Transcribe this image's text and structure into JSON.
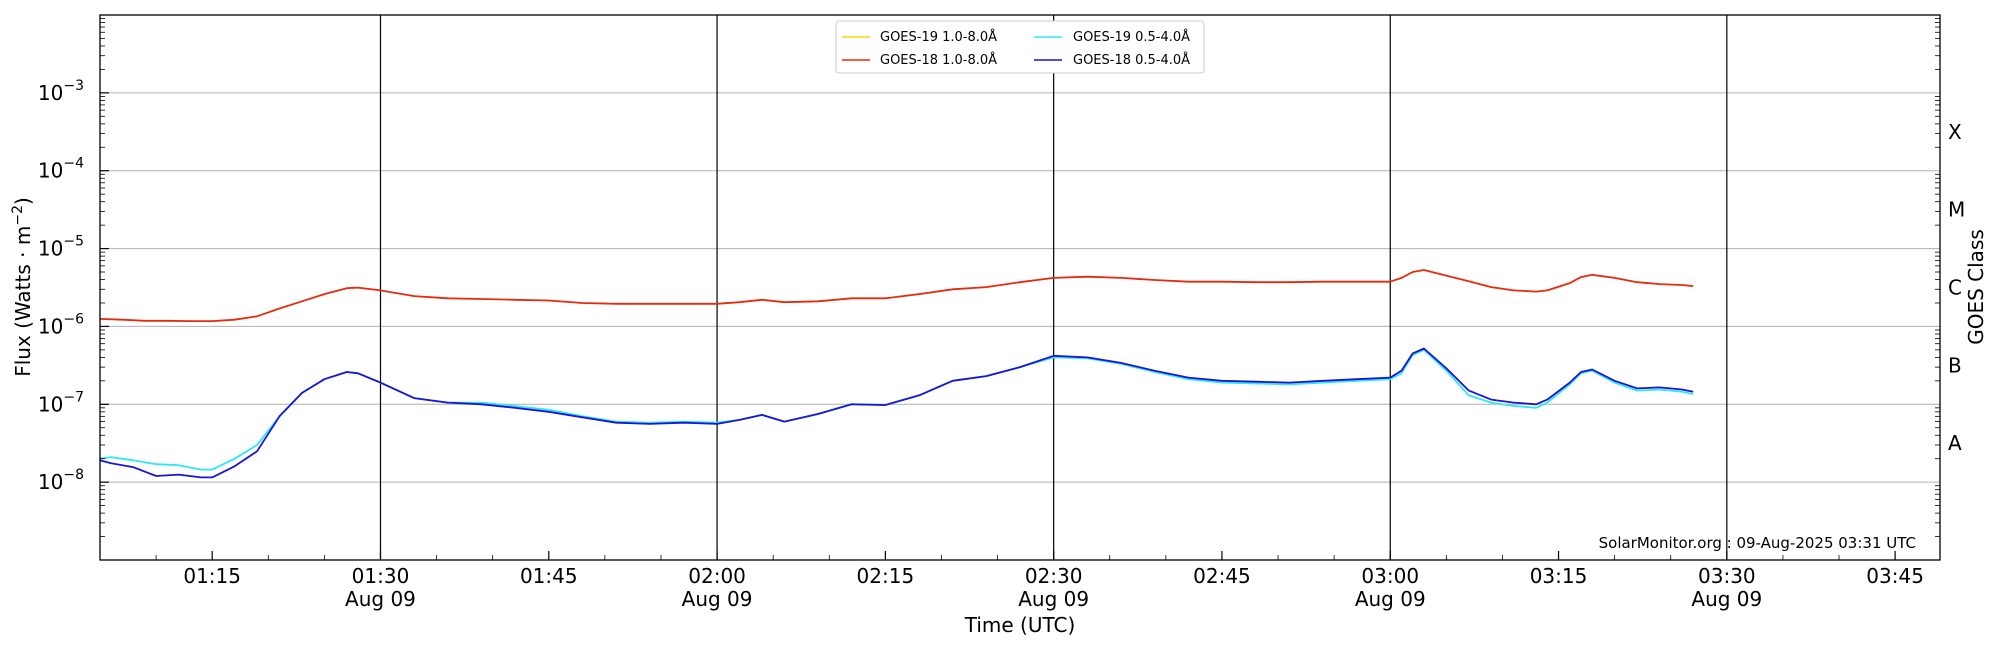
{
  "chart_data": {
    "type": "line",
    "title": "",
    "xlabel": "Time (UTC)",
    "ylabel": "Flux (Watts · m",
    "ylabel_superscript": "−2",
    "ylabel_close": ")",
    "y2label": "GOES Class",
    "yscale": "log",
    "xlim": [
      "01:05",
      "03:49"
    ],
    "ylim": [
      1e-09,
      0.01
    ],
    "grid": "horizontal at decades",
    "legend_position": "top-center",
    "x_ticks": [
      {
        "time": "01:15",
        "line1": "01:15",
        "line2": ""
      },
      {
        "time": "01:30",
        "line1": "01:30",
        "line2": "Aug 09"
      },
      {
        "time": "01:45",
        "line1": "01:45",
        "line2": ""
      },
      {
        "time": "02:00",
        "line1": "02:00",
        "line2": "Aug 09"
      },
      {
        "time": "02:15",
        "line1": "02:15",
        "line2": ""
      },
      {
        "time": "02:30",
        "line1": "02:30",
        "line2": "Aug 09"
      },
      {
        "time": "02:45",
        "line1": "02:45",
        "line2": ""
      },
      {
        "time": "03:00",
        "line1": "03:00",
        "line2": "Aug 09"
      },
      {
        "time": "03:15",
        "line1": "03:15",
        "line2": ""
      },
      {
        "time": "03:30",
        "line1": "03:30",
        "line2": "Aug 09"
      },
      {
        "time": "03:45",
        "line1": "03:45",
        "line2": ""
      }
    ],
    "vertical_lines": [
      "01:30",
      "02:00",
      "02:30",
      "03:00",
      "03:30"
    ],
    "y_ticks": [
      {
        "exp": -8,
        "base": "10",
        "power": "−8"
      },
      {
        "exp": -7,
        "base": "10",
        "power": "−7"
      },
      {
        "exp": -6,
        "base": "10",
        "power": "−6"
      },
      {
        "exp": -5,
        "base": "10",
        "power": "−5"
      },
      {
        "exp": -4,
        "base": "10",
        "power": "−4"
      },
      {
        "exp": -3,
        "base": "10",
        "power": "−3"
      }
    ],
    "classes": [
      {
        "label": "A",
        "exp": -7.5
      },
      {
        "label": "B",
        "exp": -6.5
      },
      {
        "label": "C",
        "exp": -5.5
      },
      {
        "label": "M",
        "exp": -4.5
      },
      {
        "label": "X",
        "exp": -3.5
      }
    ],
    "series": [
      {
        "name": "GOES-19 1.0-8.0Å",
        "color": "#ffd700",
        "x": [],
        "y": []
      },
      {
        "name": "GOES-18 1.0-8.0Å",
        "color": "#e8290a",
        "x": [
          "01:05",
          "01:07",
          "01:09",
          "01:11",
          "01:13",
          "01:15",
          "01:17",
          "01:19",
          "01:21",
          "01:23",
          "01:25",
          "01:27",
          "01:28",
          "01:30",
          "01:33",
          "01:36",
          "01:39",
          "01:42",
          "01:45",
          "01:48",
          "01:51",
          "01:54",
          "01:57",
          "02:00",
          "02:02",
          "02:04",
          "02:06",
          "02:09",
          "02:12",
          "02:15",
          "02:18",
          "02:21",
          "02:24",
          "02:27",
          "02:30",
          "02:33",
          "02:36",
          "02:39",
          "02:42",
          "02:45",
          "02:48",
          "02:51",
          "02:54",
          "02:57",
          "03:00",
          "03:01",
          "03:02",
          "03:03",
          "03:05",
          "03:07",
          "03:09",
          "03:11",
          "03:13",
          "03:14",
          "03:16",
          "03:17",
          "03:18",
          "03:20",
          "03:22",
          "03:24",
          "03:26",
          "03:27"
        ],
        "y": [
          1.25e-06,
          1.22e-06,
          1.18e-06,
          1.18e-06,
          1.17e-06,
          1.17e-06,
          1.22e-06,
          1.35e-06,
          1.7e-06,
          2.1e-06,
          2.6e-06,
          3.1e-06,
          3.15e-06,
          2.9e-06,
          2.45e-06,
          2.3e-06,
          2.25e-06,
          2.2e-06,
          2.15e-06,
          2e-06,
          1.95e-06,
          1.95e-06,
          1.95e-06,
          1.95e-06,
          2.05e-06,
          2.2e-06,
          2.05e-06,
          2.1e-06,
          2.3e-06,
          2.3e-06,
          2.6e-06,
          3e-06,
          3.2e-06,
          3.7e-06,
          4.2e-06,
          4.35e-06,
          4.2e-06,
          3.95e-06,
          3.75e-06,
          3.75e-06,
          3.7e-06,
          3.7e-06,
          3.75e-06,
          3.75e-06,
          3.75e-06,
          4.2e-06,
          5e-06,
          5.3e-06,
          4.5e-06,
          3.8e-06,
          3.2e-06,
          2.9e-06,
          2.8e-06,
          2.9e-06,
          3.6e-06,
          4.3e-06,
          4.6e-06,
          4.2e-06,
          3.7e-06,
          3.5e-06,
          3.4e-06,
          3.3e-06
        ]
      },
      {
        "name": "GOES-19 0.5-4.0Å",
        "color": "#2ee8f0",
        "x": [
          "01:05",
          "01:06",
          "01:08",
          "01:10",
          "01:12",
          "01:14",
          "01:15",
          "01:17",
          "01:19",
          "01:21",
          "01:23",
          "01:25",
          "01:27",
          "01:28",
          "01:30",
          "01:33",
          "01:36",
          "01:39",
          "01:42",
          "01:45",
          "01:48",
          "01:51",
          "01:54",
          "01:57",
          "02:00",
          "02:02",
          "02:04",
          "02:06",
          "02:09",
          "02:12",
          "02:15",
          "02:18",
          "02:21",
          "02:24",
          "02:27",
          "02:30",
          "02:33",
          "02:36",
          "02:39",
          "02:42",
          "02:45",
          "02:48",
          "02:51",
          "02:54",
          "02:57",
          "03:00",
          "03:01",
          "03:02",
          "03:03",
          "03:05",
          "03:07",
          "03:09",
          "03:11",
          "03:13",
          "03:14",
          "03:16",
          "03:17",
          "03:18",
          "03:20",
          "03:22",
          "03:24",
          "03:26",
          "03:27"
        ],
        "y": [
          2e-08,
          2.1e-08,
          1.9e-08,
          1.7e-08,
          1.65e-08,
          1.45e-08,
          1.45e-08,
          2e-08,
          3e-08,
          7e-08,
          1.4e-07,
          2.1e-07,
          2.6e-07,
          2.5e-07,
          1.9e-07,
          1.2e-07,
          1.05e-07,
          1.05e-07,
          9.5e-08,
          8.5e-08,
          7e-08,
          6e-08,
          5.8e-08,
          6e-08,
          5.8e-08,
          6.3e-08,
          7.3e-08,
          6e-08,
          7.5e-08,
          1e-07,
          9.8e-08,
          1.3e-07,
          2e-07,
          2.3e-07,
          3e-07,
          4e-07,
          3.9e-07,
          3.3e-07,
          2.6e-07,
          2.1e-07,
          1.9e-07,
          1.85e-07,
          1.8e-07,
          1.9e-07,
          2e-07,
          2.1e-07,
          2.5e-07,
          4.3e-07,
          5e-07,
          2.7e-07,
          1.3e-07,
          1.05e-07,
          9.5e-08,
          9e-08,
          1.05e-07,
          1.8e-07,
          2.5e-07,
          2.7e-07,
          1.9e-07,
          1.5e-07,
          1.55e-07,
          1.45e-07,
          1.35e-07
        ]
      },
      {
        "name": "GOES-18 0.5-4.0Å",
        "color": "#1a14d6",
        "x": [
          "01:05",
          "01:06",
          "01:08",
          "01:10",
          "01:12",
          "01:14",
          "01:15",
          "01:17",
          "01:19",
          "01:21",
          "01:23",
          "01:25",
          "01:27",
          "01:28",
          "01:30",
          "01:33",
          "01:36",
          "01:39",
          "01:42",
          "01:45",
          "01:48",
          "01:51",
          "01:54",
          "01:57",
          "02:00",
          "02:02",
          "02:04",
          "02:06",
          "02:09",
          "02:12",
          "02:15",
          "02:18",
          "02:21",
          "02:24",
          "02:27",
          "02:30",
          "02:33",
          "02:36",
          "02:39",
          "02:42",
          "02:45",
          "02:48",
          "02:51",
          "02:54",
          "02:57",
          "03:00",
          "03:01",
          "03:02",
          "03:03",
          "03:05",
          "03:07",
          "03:09",
          "03:11",
          "03:13",
          "03:14",
          "03:16",
          "03:17",
          "03:18",
          "03:20",
          "03:22",
          "03:24",
          "03:26",
          "03:27"
        ],
        "y": [
          1.9e-08,
          1.75e-08,
          1.55e-08,
          1.2e-08,
          1.25e-08,
          1.15e-08,
          1.15e-08,
          1.6e-08,
          2.5e-08,
          7e-08,
          1.4e-07,
          2.1e-07,
          2.6e-07,
          2.5e-07,
          1.9e-07,
          1.2e-07,
          1.05e-07,
          1e-07,
          9e-08,
          8e-08,
          6.8e-08,
          5.8e-08,
          5.6e-08,
          5.8e-08,
          5.6e-08,
          6.3e-08,
          7.3e-08,
          6e-08,
          7.5e-08,
          1e-07,
          9.8e-08,
          1.3e-07,
          2e-07,
          2.3e-07,
          3e-07,
          4.2e-07,
          4e-07,
          3.4e-07,
          2.7e-07,
          2.2e-07,
          2e-07,
          1.95e-07,
          1.9e-07,
          2e-07,
          2.1e-07,
          2.2e-07,
          2.7e-07,
          4.5e-07,
          5.2e-07,
          2.9e-07,
          1.5e-07,
          1.15e-07,
          1.05e-07,
          1e-07,
          1.15e-07,
          1.9e-07,
          2.6e-07,
          2.8e-07,
          2e-07,
          1.6e-07,
          1.65e-07,
          1.55e-07,
          1.45e-07
        ]
      }
    ],
    "credit": "SolarMonitor.org : 09-Aug-2025 03:31 UTC"
  }
}
